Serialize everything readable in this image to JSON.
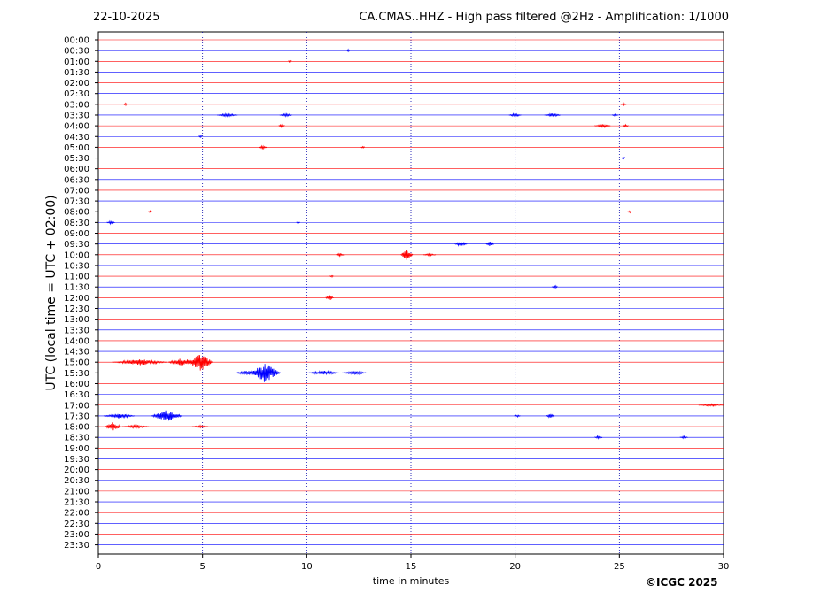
{
  "header": {
    "date": "22-10-2025",
    "title": "CA.CMAS..HHZ - High pass filtered @2Hz - Amplification: 1/1000"
  },
  "footer": {
    "copyright": "©ICGC 2025"
  },
  "colors": {
    "red_trace": "#ff0000",
    "blue_trace": "#0000ff",
    "grid": "#0000aa"
  },
  "chart_data": {
    "type": "line",
    "title": "CA.CMAS..HHZ - High pass filtered @2Hz - Amplification: 1/1000",
    "xlabel": "time in minutes",
    "ylabel": "UTC (local time = UTC + 02:00)",
    "xlim": [
      0,
      30
    ],
    "x_ticks": [
      "0",
      "5",
      "10",
      "15",
      "20",
      "25",
      "30"
    ],
    "grid": "vertical dotted at every 5 minutes",
    "row_colors": "alternating red/blue",
    "rows": [
      "00:00",
      "00:30",
      "01:00",
      "01:30",
      "02:00",
      "02:30",
      "03:00",
      "03:30",
      "04:00",
      "04:30",
      "05:00",
      "05:30",
      "06:00",
      "06:30",
      "07:00",
      "07:30",
      "08:00",
      "08:30",
      "09:00",
      "09:30",
      "10:00",
      "10:30",
      "11:00",
      "11:30",
      "12:00",
      "12:30",
      "13:00",
      "13:30",
      "14:00",
      "14:30",
      "15:00",
      "15:30",
      "16:00",
      "16:30",
      "17:00",
      "17:30",
      "18:00",
      "18:30",
      "19:00",
      "19:30",
      "20:00",
      "20:30",
      "21:00",
      "21:30",
      "22:00",
      "22:30",
      "23:00",
      "23:30"
    ],
    "events": [
      {
        "row": "00:30",
        "minute": 12.0,
        "amp": 1.5,
        "width": 0.2
      },
      {
        "row": "01:00",
        "minute": 9.2,
        "amp": 1.5,
        "width": 0.2
      },
      {
        "row": "03:00",
        "minute": 1.3,
        "amp": 1.5,
        "width": 0.2
      },
      {
        "row": "03:00",
        "minute": 25.2,
        "amp": 1.5,
        "width": 0.3
      },
      {
        "row": "03:30",
        "minute": 6.2,
        "amp": 2.0,
        "width": 1.0
      },
      {
        "row": "03:30",
        "minute": 9.0,
        "amp": 2.0,
        "width": 0.6
      },
      {
        "row": "03:30",
        "minute": 20.0,
        "amp": 2.0,
        "width": 0.6
      },
      {
        "row": "03:30",
        "minute": 21.8,
        "amp": 2.0,
        "width": 0.8
      },
      {
        "row": "03:30",
        "minute": 24.8,
        "amp": 1.5,
        "width": 0.3
      },
      {
        "row": "04:00",
        "minute": 8.8,
        "amp": 2.0,
        "width": 0.3
      },
      {
        "row": "04:00",
        "minute": 24.2,
        "amp": 2.0,
        "width": 0.8
      },
      {
        "row": "04:00",
        "minute": 25.3,
        "amp": 1.5,
        "width": 0.3
      },
      {
        "row": "04:30",
        "minute": 4.9,
        "amp": 1.5,
        "width": 0.2
      },
      {
        "row": "05:00",
        "minute": 7.9,
        "amp": 2.0,
        "width": 0.4
      },
      {
        "row": "05:00",
        "minute": 12.7,
        "amp": 1.5,
        "width": 0.2
      },
      {
        "row": "05:30",
        "minute": 25.2,
        "amp": 1.5,
        "width": 0.2
      },
      {
        "row": "08:00",
        "minute": 2.5,
        "amp": 1.5,
        "width": 0.2
      },
      {
        "row": "08:00",
        "minute": 25.5,
        "amp": 1.5,
        "width": 0.2
      },
      {
        "row": "08:30",
        "minute": 0.6,
        "amp": 2.0,
        "width": 0.4
      },
      {
        "row": "08:30",
        "minute": 9.6,
        "amp": 1.5,
        "width": 0.2
      },
      {
        "row": "09:30",
        "minute": 17.4,
        "amp": 3.0,
        "width": 0.6
      },
      {
        "row": "09:30",
        "minute": 18.8,
        "amp": 3.0,
        "width": 0.4
      },
      {
        "row": "10:00",
        "minute": 11.6,
        "amp": 2.0,
        "width": 0.4
      },
      {
        "row": "10:00",
        "minute": 14.8,
        "amp": 6.0,
        "width": 0.6
      },
      {
        "row": "10:00",
        "minute": 15.9,
        "amp": 1.5,
        "width": 0.6
      },
      {
        "row": "11:00",
        "minute": 11.2,
        "amp": 1.5,
        "width": 0.2
      },
      {
        "row": "11:30",
        "minute": 21.9,
        "amp": 2.5,
        "width": 0.3
      },
      {
        "row": "12:00",
        "minute": 11.1,
        "amp": 3.5,
        "width": 0.4
      },
      {
        "row": "15:00",
        "minute": 2.0,
        "amp": 3.5,
        "width": 2.6
      },
      {
        "row": "15:00",
        "minute": 4.0,
        "amp": 5.0,
        "width": 1.3
      },
      {
        "row": "15:00",
        "minute": 4.9,
        "amp": 11.0,
        "width": 1.2
      },
      {
        "row": "15:30",
        "minute": 8.0,
        "amp": 11.0,
        "width": 1.5
      },
      {
        "row": "15:30",
        "minute": 7.2,
        "amp": 3.0,
        "width": 1.2
      },
      {
        "row": "15:30",
        "minute": 10.8,
        "amp": 2.5,
        "width": 1.5
      },
      {
        "row": "15:30",
        "minute": 12.3,
        "amp": 2.5,
        "width": 1.2
      },
      {
        "row": "17:00",
        "minute": 29.4,
        "amp": 1.5,
        "width": 1.2
      },
      {
        "row": "17:30",
        "minute": 1.0,
        "amp": 3.0,
        "width": 1.5
      },
      {
        "row": "17:30",
        "minute": 3.3,
        "amp": 7.0,
        "width": 1.5
      },
      {
        "row": "17:30",
        "minute": 20.1,
        "amp": 1.5,
        "width": 0.3
      },
      {
        "row": "17:30",
        "minute": 21.7,
        "amp": 2.5,
        "width": 0.4
      },
      {
        "row": "18:00",
        "minute": 0.7,
        "amp": 5.0,
        "width": 0.8
      },
      {
        "row": "18:00",
        "minute": 1.8,
        "amp": 2.0,
        "width": 1.3
      },
      {
        "row": "18:00",
        "minute": 4.9,
        "amp": 1.5,
        "width": 0.8
      },
      {
        "row": "18:30",
        "minute": 24.0,
        "amp": 2.0,
        "width": 0.4
      },
      {
        "row": "18:30",
        "minute": 28.1,
        "amp": 1.5,
        "width": 0.4
      }
    ]
  }
}
